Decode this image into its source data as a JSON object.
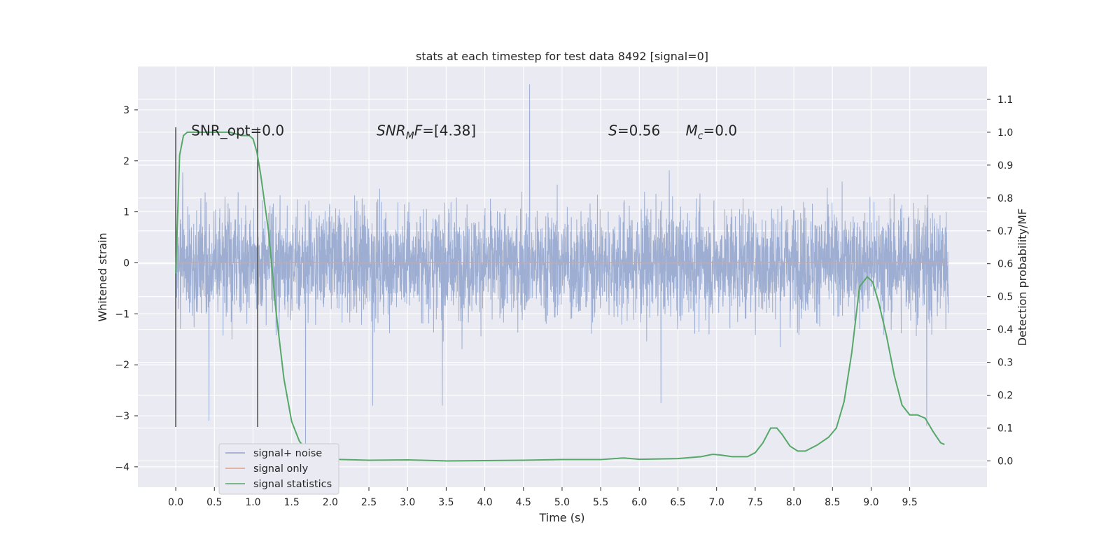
{
  "chart_data": {
    "type": "line",
    "title": "stats at each timestep for test data 8492 [signal=0]",
    "xlabel": "Time (s)",
    "ylabel": "Whitened strain",
    "y2label": "Detection probability/MF",
    "xlim": [
      -0.49,
      10.5
    ],
    "ylim": [
      -4.4,
      3.85
    ],
    "y2lim": [
      -0.08,
      1.2
    ],
    "xticks": [
      0.0,
      0.5,
      1.0,
      1.5,
      2.0,
      2.5,
      3.0,
      3.5,
      4.0,
      4.5,
      5.0,
      5.5,
      6.0,
      6.5,
      7.0,
      7.5,
      8.0,
      8.5,
      9.0,
      9.5
    ],
    "xtick_labels": [
      "0.0",
      "0.5",
      "1.0",
      "1.5",
      "2.0",
      "2.5",
      "3.0",
      "3.5",
      "4.0",
      "4.5",
      "5.0",
      "5.5",
      "6.0",
      "6.5",
      "7.0",
      "7.5",
      "8.0",
      "8.5",
      "9.0",
      "9.5"
    ],
    "yticks": [
      3,
      2,
      1,
      0,
      -1,
      -2,
      -3,
      -4
    ],
    "ytick_labels": [
      "3",
      "2",
      "1",
      "0",
      "−1",
      "−2",
      "−3",
      "−4"
    ],
    "y2ticks": [
      1.1,
      1.0,
      0.9,
      0.8,
      0.7,
      0.6,
      0.5,
      0.4,
      0.3,
      0.2,
      0.1,
      0.0
    ],
    "y2tick_labels": [
      "1.1",
      "1.0",
      "0.9",
      "0.8",
      "0.7",
      "0.6",
      "0.5",
      "0.4",
      "0.3",
      "0.2",
      "0.1",
      "0.0"
    ],
    "grid": true,
    "legend_position": "lower-left",
    "series": [
      {
        "name": "signal+ noise",
        "color": "#8fa3cc",
        "style": "dense noise trace, core band about ±0.9, peaks about ±2.5 with outliers up to 3.5 and down to -3.6",
        "t_range": [
          0.0,
          10.0
        ],
        "extremes": [
          [
            4.58,
            3.5
          ],
          [
            1.68,
            -3.6
          ],
          [
            9.72,
            -3.2
          ],
          [
            0.43,
            -3.1
          ],
          [
            3.45,
            -2.8
          ],
          [
            6.28,
            -2.75
          ],
          [
            2.55,
            -2.8
          ]
        ]
      },
      {
        "name": "signal only",
        "color": "#e0a187",
        "x": [
          0.0,
          10.0
        ],
        "y": [
          0.0,
          0.0
        ]
      },
      {
        "name": "signal statistics",
        "color": "#55a868",
        "axis": "right",
        "x": [
          0.0,
          0.05,
          0.1,
          0.15,
          0.2,
          0.3,
          0.5,
          0.7,
          0.85,
          0.95,
          1.0,
          1.05,
          1.1,
          1.2,
          1.3,
          1.4,
          1.5,
          1.6,
          1.7,
          1.8,
          2.0,
          2.5,
          3.0,
          3.5,
          4.0,
          4.5,
          5.0,
          5.5,
          5.8,
          6.0,
          6.5,
          6.8,
          6.95,
          7.05,
          7.2,
          7.4,
          7.5,
          7.6,
          7.7,
          7.78,
          7.85,
          7.95,
          8.05,
          8.15,
          8.3,
          8.45,
          8.55,
          8.65,
          8.75,
          8.85,
          8.95,
          9.02,
          9.1,
          9.2,
          9.3,
          9.4,
          9.5,
          9.6,
          9.7,
          9.8,
          9.9,
          9.95
        ],
        "y": [
          0.57,
          0.93,
          0.99,
          1.0,
          1.0,
          1.0,
          1.0,
          1.0,
          0.99,
          0.99,
          0.98,
          0.94,
          0.87,
          0.7,
          0.45,
          0.25,
          0.12,
          0.06,
          0.03,
          0.012,
          0.005,
          0.002,
          0.003,
          0.0,
          0.001,
          0.002,
          0.004,
          0.004,
          0.009,
          0.005,
          0.007,
          0.013,
          0.02,
          0.018,
          0.013,
          0.013,
          0.025,
          0.055,
          0.1,
          0.1,
          0.08,
          0.045,
          0.03,
          0.03,
          0.048,
          0.072,
          0.1,
          0.18,
          0.33,
          0.53,
          0.56,
          0.545,
          0.48,
          0.38,
          0.26,
          0.17,
          0.14,
          0.14,
          0.13,
          0.09,
          0.055,
          0.05
        ]
      }
    ],
    "vlines": [
      {
        "x": 0.0,
        "y": [
          -3.22,
          2.66
        ],
        "color": "#555555"
      },
      {
        "x": 1.06,
        "y": [
          -3.22,
          2.66
        ],
        "color": "#555555"
      }
    ],
    "annotations": [
      {
        "key": "snr_opt",
        "x": 0.2,
        "y": 2.66
      },
      {
        "key": "snr_mf",
        "x": 2.6,
        "y": 2.66
      },
      {
        "key": "s",
        "x": 5.6,
        "y": 2.66
      },
      {
        "key": "mc",
        "x": 6.6,
        "y": 2.66
      }
    ]
  },
  "annotations_text": {
    "snr_opt": "SNR_opt=0.0",
    "snr_mf_label": "SNR",
    "snr_mf_sub": "M",
    "snr_mf_tail": "F",
    "snr_mf_value": "=[4.38]",
    "s_label": "S",
    "s_value": "=0.56",
    "mc_label": "M",
    "mc_sub": "c",
    "mc_value": "=0.0"
  },
  "legend": {
    "items": [
      "signal+ noise",
      "signal only",
      "signal statistics"
    ]
  }
}
